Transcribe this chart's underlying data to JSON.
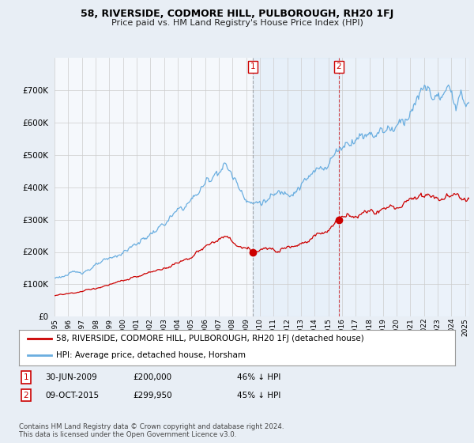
{
  "title": "58, RIVERSIDE, CODMORE HILL, PULBOROUGH, RH20 1FJ",
  "subtitle": "Price paid vs. HM Land Registry's House Price Index (HPI)",
  "background_color": "#e8eef5",
  "plot_bg_color": "#f5f8fc",
  "grid_color": "#cccccc",
  "hpi_color": "#6aaee0",
  "price_color": "#cc0000",
  "ylim": [
    0,
    800000
  ],
  "yticks": [
    0,
    100000,
    200000,
    300000,
    400000,
    500000,
    600000,
    700000
  ],
  "xlim_start": 1995.0,
  "xlim_end": 2025.3,
  "transaction1_x": 2009.5,
  "transaction1_y": 200000,
  "transaction2_x": 2015.77,
  "transaction2_y": 299950,
  "shade1_start": 2009.5,
  "shade1_end": 2015.77,
  "shade2_start": 2015.77,
  "shade2_end": 2025.3,
  "legend_line1": "58, RIVERSIDE, CODMORE HILL, PULBOROUGH, RH20 1FJ (detached house)",
  "legend_line2": "HPI: Average price, detached house, Horsham",
  "annotation1_date": "30-JUN-2009",
  "annotation1_price": "£200,000",
  "annotation1_hpi": "46% ↓ HPI",
  "annotation2_date": "09-OCT-2015",
  "annotation2_price": "£299,950",
  "annotation2_hpi": "45% ↓ HPI",
  "footer": "Contains HM Land Registry data © Crown copyright and database right 2024.\nThis data is licensed under the Open Government Licence v3.0."
}
